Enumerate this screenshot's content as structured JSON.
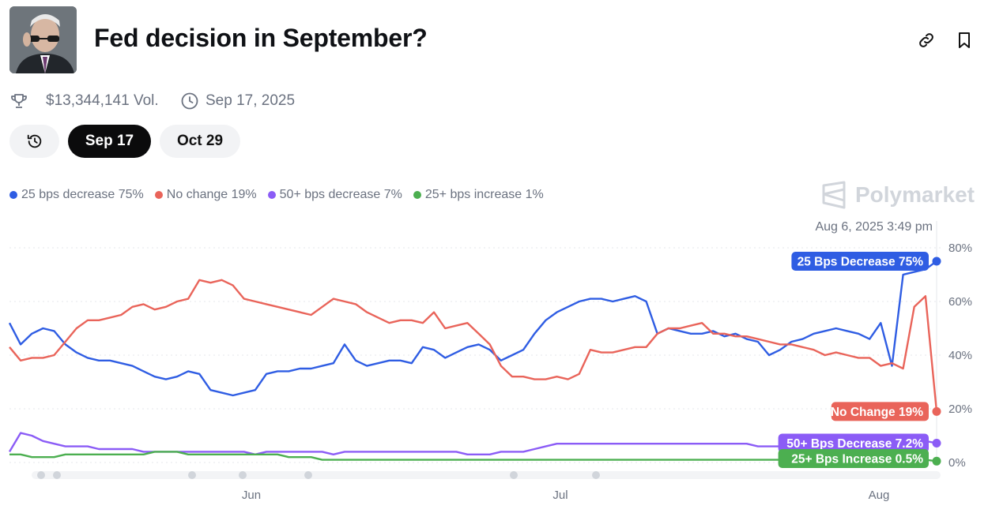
{
  "header": {
    "title": "Fed decision in September?",
    "volume": "$13,344,141 Vol.",
    "end_date": "Sep 17, 2025"
  },
  "tabs": [
    {
      "label": "Sep 17",
      "active": true
    },
    {
      "label": "Oct 29",
      "active": false
    }
  ],
  "legend": [
    {
      "label": "25 bps decrease 75%",
      "color": "#2f5de3"
    },
    {
      "label": "No change 19%",
      "color": "#e9645a"
    },
    {
      "label": "50+ bps decrease 7%",
      "color": "#8b5cf6"
    },
    {
      "label": "25+ bps increase 1%",
      "color": "#4caf50"
    }
  ],
  "brand": "Polymarket",
  "icons": {
    "market_image": "portrait-image",
    "link": "link-icon",
    "bookmark": "bookmark-icon",
    "volume": "trophy-icon",
    "date": "clock-icon",
    "history": "history-icon"
  },
  "chart_data": {
    "type": "line",
    "hover_timestamp": "Aug 6, 2025 3:49 pm",
    "yticks": [
      "0%",
      "20%",
      "40%",
      "60%",
      "80%"
    ],
    "xticks": [
      "Jun",
      "Jul",
      "Aug"
    ],
    "ylim": [
      0,
      85
    ],
    "grid": true,
    "legend_position": "top-left",
    "series": [
      {
        "name": "25 Bps Decrease",
        "end_label": "25 Bps Decrease 75%",
        "color": "#2f5de3",
        "values": [
          52,
          44,
          48,
          50,
          49,
          44,
          41,
          39,
          38,
          38,
          37,
          36,
          34,
          32,
          31,
          32,
          34,
          33,
          27,
          26,
          25,
          26,
          27,
          33,
          34,
          34,
          35,
          35,
          36,
          37,
          44,
          38,
          36,
          37,
          38,
          38,
          37,
          43,
          42,
          39,
          41,
          43,
          44,
          42,
          38,
          40,
          42,
          48,
          53,
          56,
          58,
          60,
          61,
          61,
          60,
          61,
          62,
          60,
          48,
          50,
          49,
          48,
          48,
          49,
          47,
          48,
          46,
          45,
          40,
          42,
          45,
          46,
          48,
          49,
          50,
          49,
          48,
          46,
          52,
          36,
          70,
          71,
          72,
          75
        ]
      },
      {
        "name": "No Change",
        "end_label": "No Change 19%",
        "color": "#e9645a",
        "values": [
          43,
          38,
          39,
          39,
          40,
          45,
          50,
          53,
          53,
          54,
          55,
          58,
          59,
          57,
          58,
          60,
          61,
          68,
          67,
          68,
          66,
          61,
          60,
          59,
          58,
          57,
          56,
          55,
          58,
          61,
          60,
          59,
          56,
          54,
          52,
          53,
          53,
          52,
          56,
          50,
          51,
          52,
          48,
          44,
          36,
          32,
          32,
          31,
          31,
          32,
          31,
          33,
          42,
          41,
          41,
          42,
          43,
          43,
          48,
          50,
          50,
          51,
          52,
          48,
          48,
          47,
          47,
          46,
          45,
          44,
          44,
          43,
          42,
          40,
          41,
          40,
          39,
          39,
          36,
          37,
          35,
          58,
          62,
          19
        ]
      },
      {
        "name": "50+ Bps Decrease",
        "end_label": "50+ Bps Decrease 7.2%",
        "color": "#8b5cf6",
        "values": [
          4,
          11,
          10,
          8,
          7,
          6,
          6,
          6,
          5,
          5,
          5,
          5,
          4,
          4,
          4,
          4,
          4,
          4,
          4,
          4,
          4,
          4,
          3,
          4,
          4,
          4,
          4,
          4,
          4,
          3,
          4,
          4,
          4,
          4,
          4,
          4,
          4,
          4,
          4,
          4,
          4,
          3,
          3,
          3,
          4,
          4,
          4,
          5,
          6,
          7,
          7,
          7,
          7,
          7,
          7,
          7,
          7,
          7,
          7,
          7,
          7,
          7,
          7,
          7,
          7,
          7,
          7,
          6,
          6,
          6,
          7,
          7,
          7,
          7,
          7,
          7,
          7,
          7,
          7,
          8,
          8,
          8,
          8,
          7.2
        ]
      },
      {
        "name": "25+ Bps Increase",
        "end_label": "25+ Bps Increase 0.5%",
        "color": "#4caf50",
        "values": [
          3,
          3,
          2,
          2,
          2,
          3,
          3,
          3,
          3,
          3,
          3,
          3,
          3,
          4,
          4,
          4,
          3,
          3,
          3,
          3,
          3,
          3,
          3,
          3,
          3,
          2,
          2,
          2,
          1,
          1,
          1,
          1,
          1,
          1,
          1,
          1,
          1,
          1,
          1,
          1,
          1,
          1,
          1,
          1,
          1,
          1,
          1,
          1,
          1,
          1,
          1,
          1,
          1,
          1,
          1,
          1,
          1,
          1,
          1,
          1,
          1,
          1,
          1,
          1,
          1,
          1,
          1,
          1,
          1,
          1,
          1,
          1,
          1,
          1,
          1,
          1,
          1,
          1,
          1,
          1,
          1,
          1,
          1,
          0.5
        ]
      }
    ]
  }
}
